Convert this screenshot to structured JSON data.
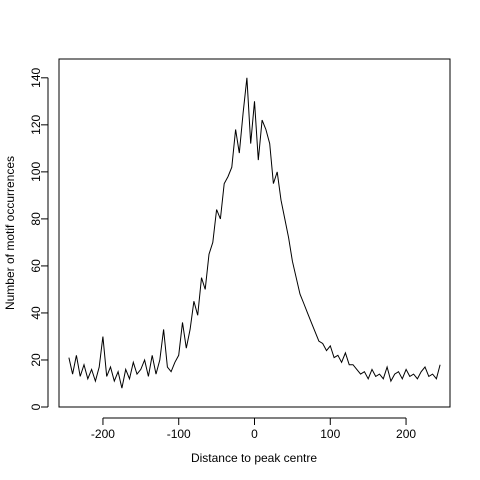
{
  "chart_data": {
    "type": "line",
    "title": "",
    "xlabel": "Distance to peak centre",
    "ylabel": "Number of motif occurrences",
    "xlim": [
      -258,
      258
    ],
    "ylim": [
      0,
      148
    ],
    "x_ticks": [
      -200,
      -100,
      0,
      100,
      200
    ],
    "x_tick_labels": [
      "-200",
      "-100",
      "0",
      "100",
      "200"
    ],
    "y_ticks": [
      0,
      20,
      40,
      60,
      80,
      100,
      120,
      140
    ],
    "y_tick_labels": [
      "0",
      "20",
      "40",
      "60",
      "80",
      "100",
      "120",
      "140"
    ],
    "grid": false,
    "color": "#000000",
    "x": [
      -245,
      -240,
      -235,
      -230,
      -225,
      -220,
      -215,
      -210,
      -205,
      -200,
      -195,
      -190,
      -185,
      -180,
      -175,
      -170,
      -165,
      -160,
      -155,
      -150,
      -145,
      -140,
      -135,
      -130,
      -125,
      -120,
      -115,
      -110,
      -105,
      -100,
      -95,
      -90,
      -85,
      -80,
      -75,
      -70,
      -65,
      -60,
      -55,
      -50,
      -45,
      -40,
      -35,
      -30,
      -25,
      -20,
      -15,
      -10,
      -5,
      0,
      5,
      10,
      15,
      20,
      25,
      30,
      35,
      40,
      45,
      50,
      55,
      60,
      65,
      70,
      75,
      80,
      85,
      90,
      95,
      100,
      105,
      110,
      115,
      120,
      125,
      130,
      135,
      140,
      145,
      150,
      155,
      160,
      165,
      170,
      175,
      180,
      185,
      190,
      195,
      200,
      205,
      210,
      215,
      220,
      225,
      230,
      235,
      240,
      245
    ],
    "values": [
      21,
      14,
      22,
      13,
      18,
      12,
      16,
      11,
      17,
      30,
      13,
      17,
      11,
      15,
      8,
      16,
      12,
      19,
      14,
      16,
      20,
      13,
      22,
      14,
      20,
      33,
      17,
      15,
      19,
      22,
      36,
      25,
      33,
      45,
      39,
      55,
      50,
      65,
      70,
      84,
      80,
      95,
      98,
      102,
      118,
      108,
      125,
      140,
      112,
      130,
      105,
      122,
      118,
      112,
      95,
      100,
      88,
      80,
      72,
      62,
      55,
      48,
      44,
      40,
      36,
      32,
      28,
      27,
      24,
      26,
      21,
      22,
      19,
      23,
      18,
      18,
      16,
      14,
      15,
      12,
      16,
      13,
      14,
      12,
      17,
      11,
      14,
      15,
      12,
      16,
      13,
      14,
      12,
      15,
      17,
      13,
      14,
      12,
      18
    ]
  }
}
